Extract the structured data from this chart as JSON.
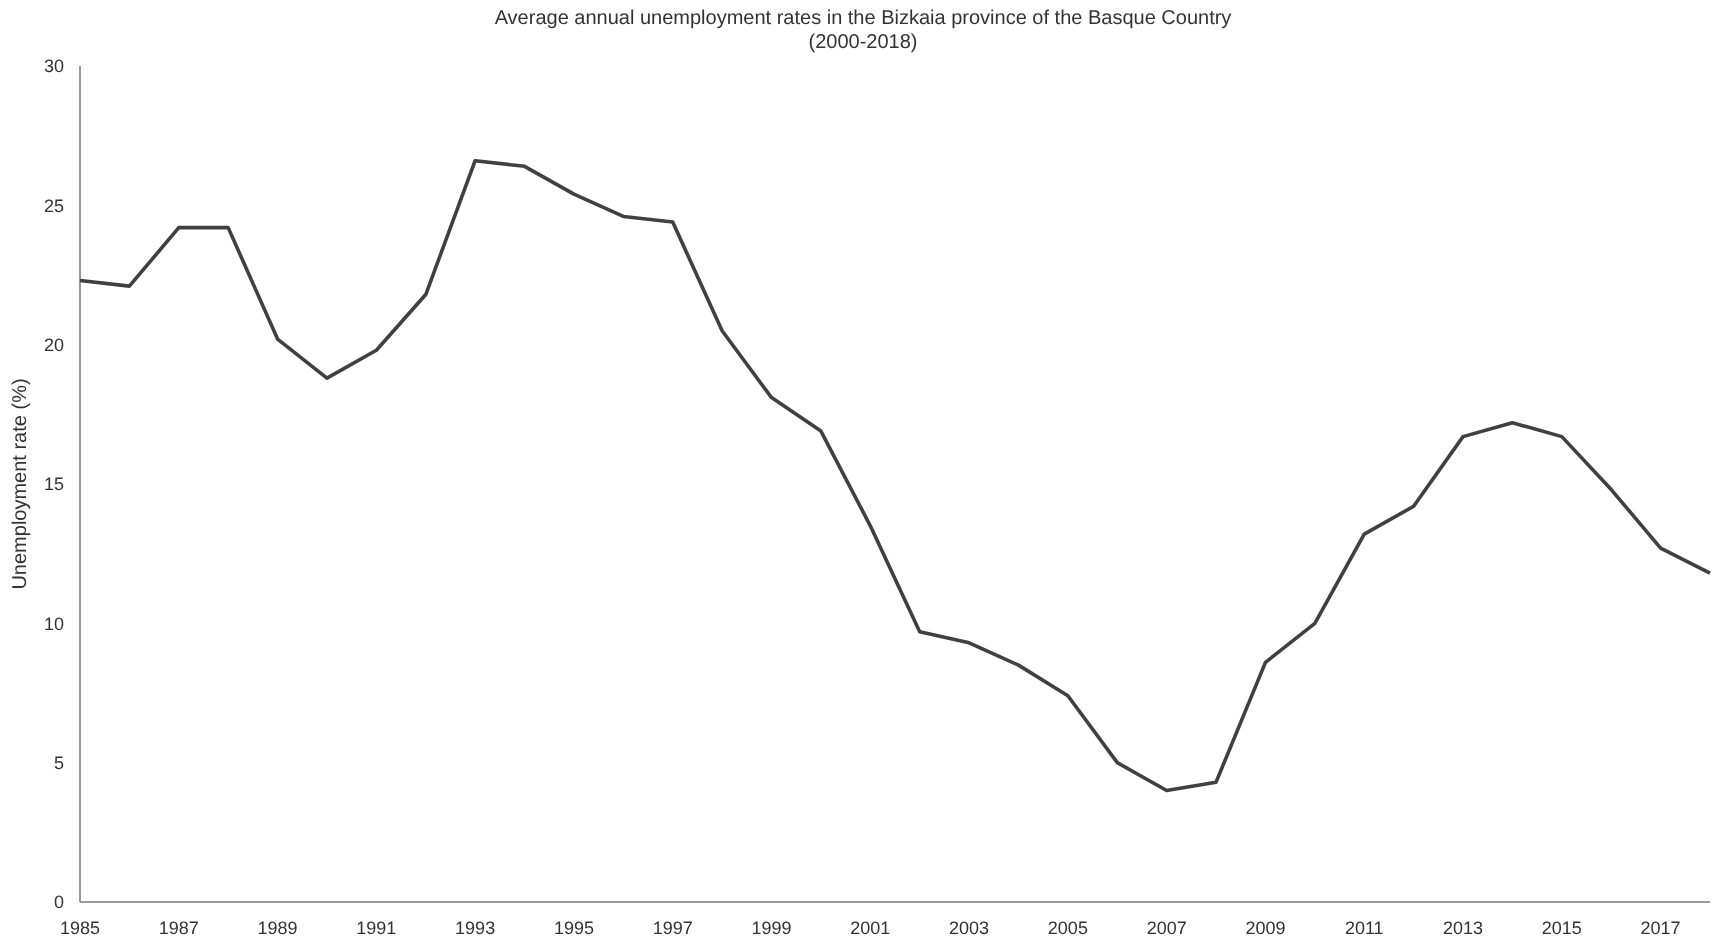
{
  "chart_data": {
    "type": "line",
    "title": "Average annual unemployment rates in the Bizkaia province of the Basque Country",
    "subtitle": "(2000-2018)",
    "ylabel": "Unemployment rate (%)",
    "categories": [
      "1985",
      null,
      "1987",
      null,
      "1989",
      null,
      "1991",
      null,
      "1993",
      null,
      "1995",
      null,
      "1997",
      null,
      "1999",
      null,
      "2001",
      null,
      "2003",
      null,
      "2005",
      null,
      "2007",
      null,
      "2009",
      null,
      "2011",
      null,
      "2013",
      null,
      "2015",
      null,
      "2017",
      null
    ],
    "series": [
      {
        "color": "#404040",
        "values": [
          22.3,
          22.1,
          24.2,
          24.2,
          20.2,
          18.8,
          19.8,
          21.8,
          26.6,
          26.4,
          25.4,
          24.6,
          24.4,
          20.5,
          18.1,
          16.9,
          13.5,
          9.7,
          9.3,
          8.5,
          7.4,
          5.0,
          4.0,
          4.3,
          8.6,
          10.0,
          13.2,
          14.2,
          16.7,
          17.2,
          16.7,
          14.8,
          12.7,
          11.8
        ]
      }
    ],
    "ylim": [
      0,
      30
    ],
    "yticks": [
      0,
      5,
      10,
      15,
      20,
      25,
      30
    ],
    "grid": false,
    "marker": "none",
    "line_style": "solid"
  }
}
